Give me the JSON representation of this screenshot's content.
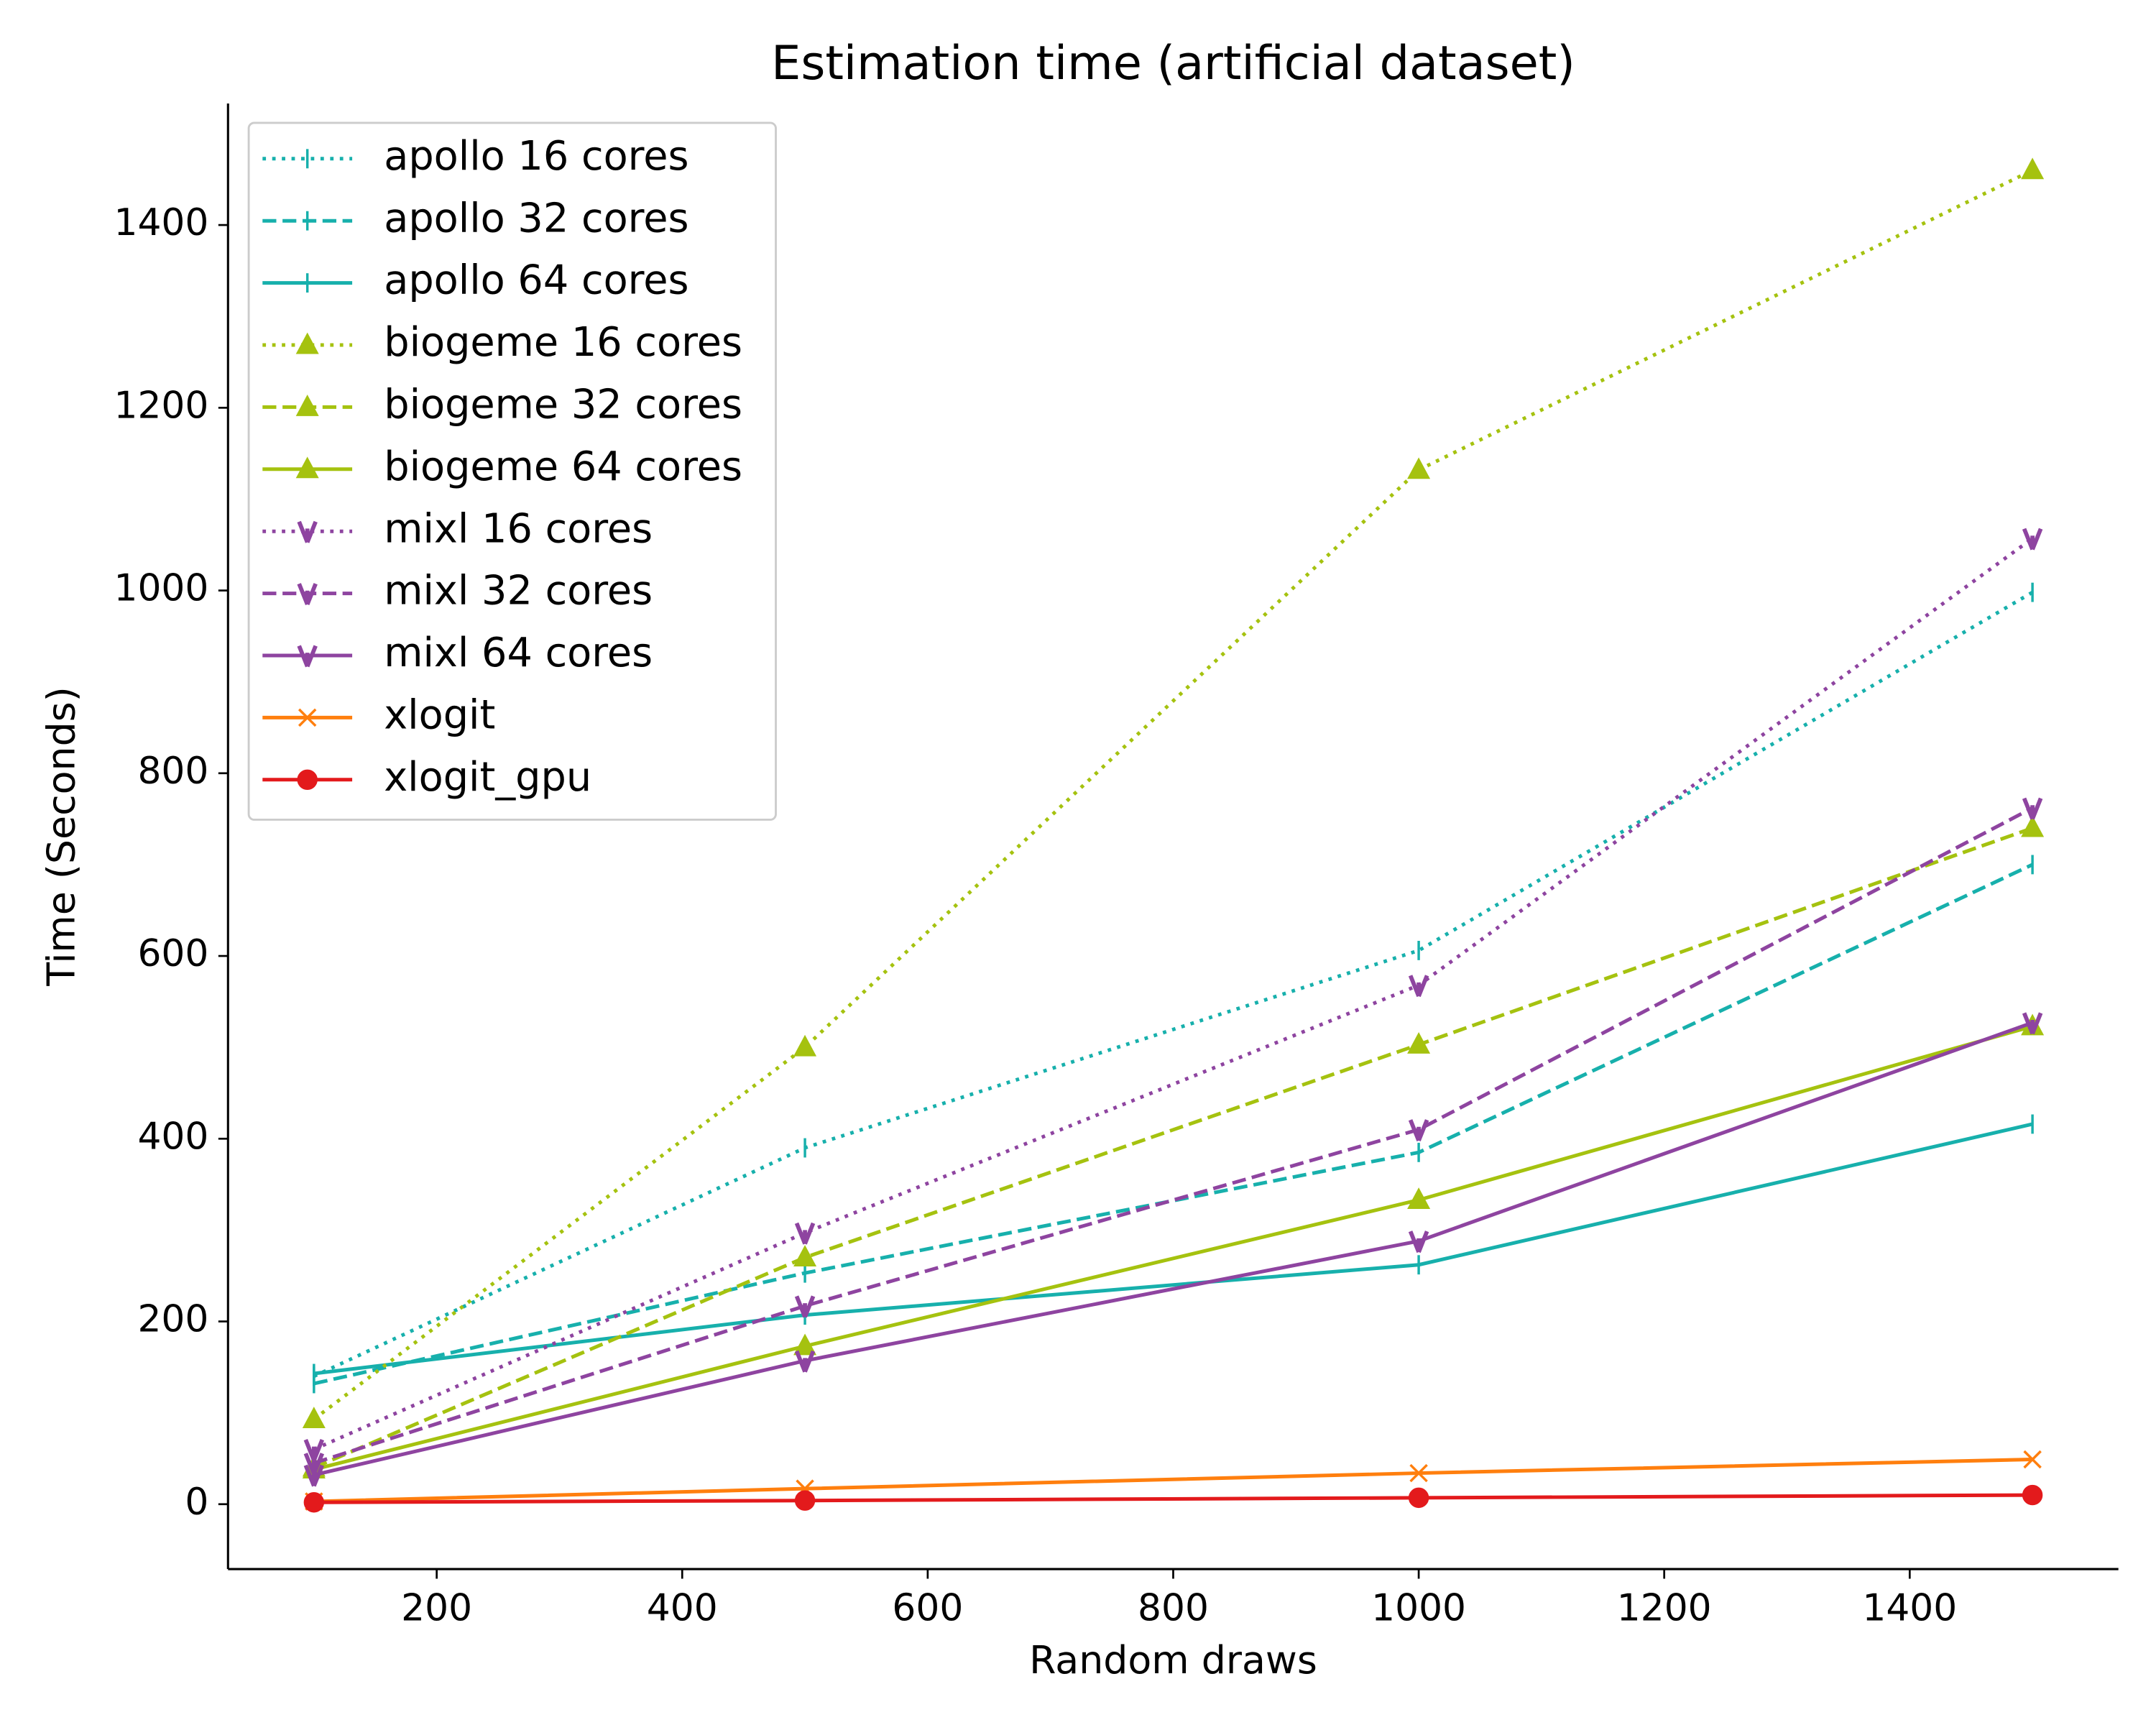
{
  "chart_data": {
    "type": "line",
    "title": "Estimation time (artificial dataset)",
    "x_label": "Random draws",
    "y_label": "Time (Seconds)",
    "x": [
      100,
      500,
      1000,
      1500
    ],
    "xlim": [
      30,
      1570
    ],
    "xticks": [
      200,
      400,
      600,
      800,
      1000,
      1200,
      1400
    ],
    "ylim": [
      -71,
      1533
    ],
    "yticks": [
      0,
      200,
      400,
      600,
      800,
      1000,
      1200,
      1400
    ],
    "legend": "upper left",
    "series": [
      {
        "name": "apollo 16 cores",
        "color": "#17b0ac",
        "linestyle": "dotted",
        "marker": "vline",
        "values": [
          140,
          390,
          606,
          998
        ]
      },
      {
        "name": "apollo 32 cores",
        "color": "#17b0ac",
        "linestyle": "dashed",
        "marker": "vline",
        "values": [
          132,
          253,
          385,
          700
        ]
      },
      {
        "name": "apollo 64 cores",
        "color": "#17b0ac",
        "linestyle": "solid",
        "marker": "vline",
        "values": [
          143,
          207,
          262,
          416
        ]
      },
      {
        "name": "biogeme 16 cores",
        "color": "#a5c20f",
        "linestyle": "dotted",
        "marker": "triangle",
        "values": [
          93,
          500,
          1132,
          1460
        ]
      },
      {
        "name": "biogeme 32 cores",
        "color": "#a5c20f",
        "linestyle": "dashed",
        "marker": "triangle",
        "values": [
          40,
          270,
          503,
          740
        ]
      },
      {
        "name": "biogeme 64 cores",
        "color": "#a5c20f",
        "linestyle": "solid",
        "marker": "triangle",
        "values": [
          38,
          173,
          333,
          523
        ]
      },
      {
        "name": "mixl 16 cores",
        "color": "#8e44a0",
        "linestyle": "dotted",
        "marker": "tri_down",
        "values": [
          60,
          297,
          568,
          1057
        ]
      },
      {
        "name": "mixl 32 cores",
        "color": "#8e44a0",
        "linestyle": "dashed",
        "marker": "tri_down",
        "values": [
          45,
          217,
          410,
          762
        ]
      },
      {
        "name": "mixl 64 cores",
        "color": "#8e44a0",
        "linestyle": "solid",
        "marker": "tri_down",
        "values": [
          32,
          157,
          288,
          527
        ]
      },
      {
        "name": "xlogit",
        "color": "#ff7f0e",
        "linestyle": "solid",
        "marker": "x",
        "values": [
          3,
          17,
          34,
          49
        ]
      },
      {
        "name": "xlogit_gpu",
        "color": "#e31a1c",
        "linestyle": "solid",
        "marker": "circle",
        "values": [
          2,
          4,
          7,
          10
        ]
      }
    ]
  }
}
